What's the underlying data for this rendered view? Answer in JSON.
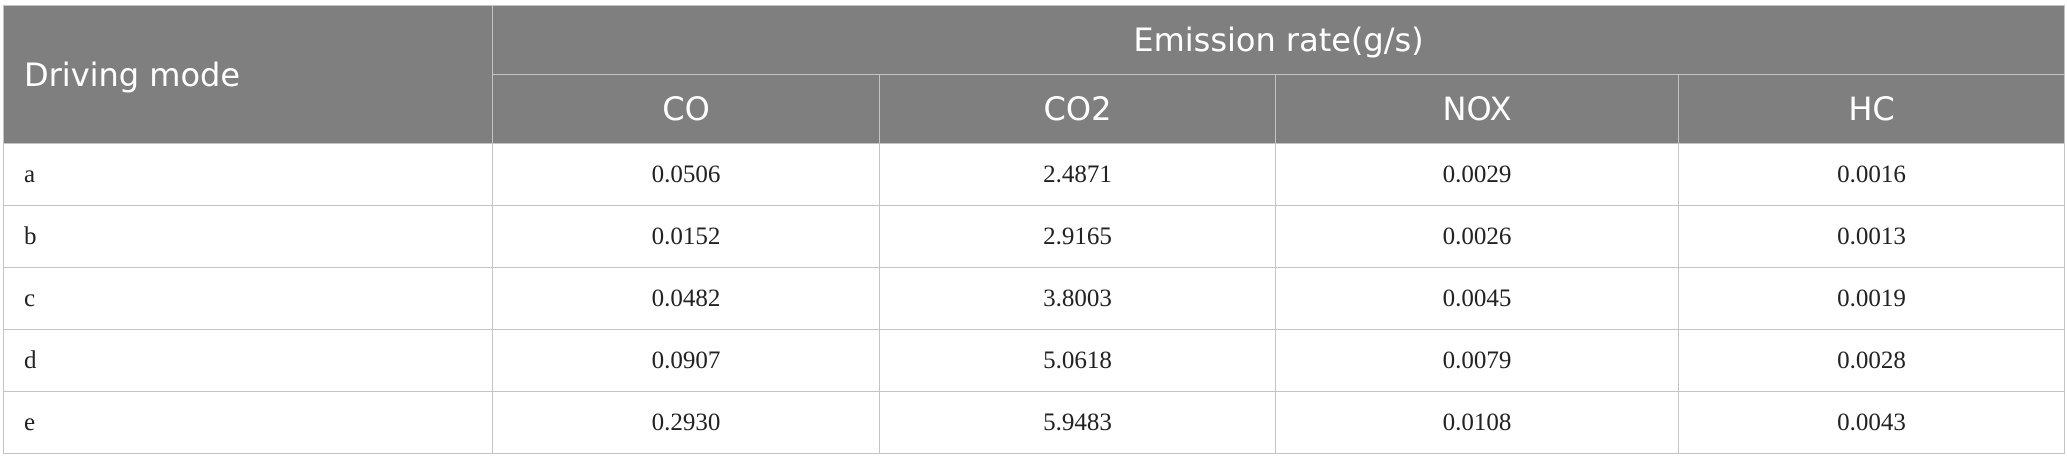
{
  "table": {
    "header": {
      "first": "Driving mode",
      "group": "Emission rate(g/s)",
      "columns": [
        "CO",
        "CO2",
        "NOX",
        "HC"
      ]
    },
    "rows": [
      [
        "a",
        "0.0506",
        "2.4871",
        "0.0029",
        "0.0016"
      ],
      [
        "b",
        "0.0152",
        "2.9165",
        "0.0026",
        "0.0013"
      ],
      [
        "c",
        "0.0482",
        "3.8003",
        "0.0045",
        "0.0019"
      ],
      [
        "d",
        "0.0907",
        "5.0618",
        "0.0079",
        "0.0028"
      ],
      [
        "e",
        "0.2930",
        "5.9483",
        "0.0108",
        "0.0043"
      ]
    ]
  }
}
